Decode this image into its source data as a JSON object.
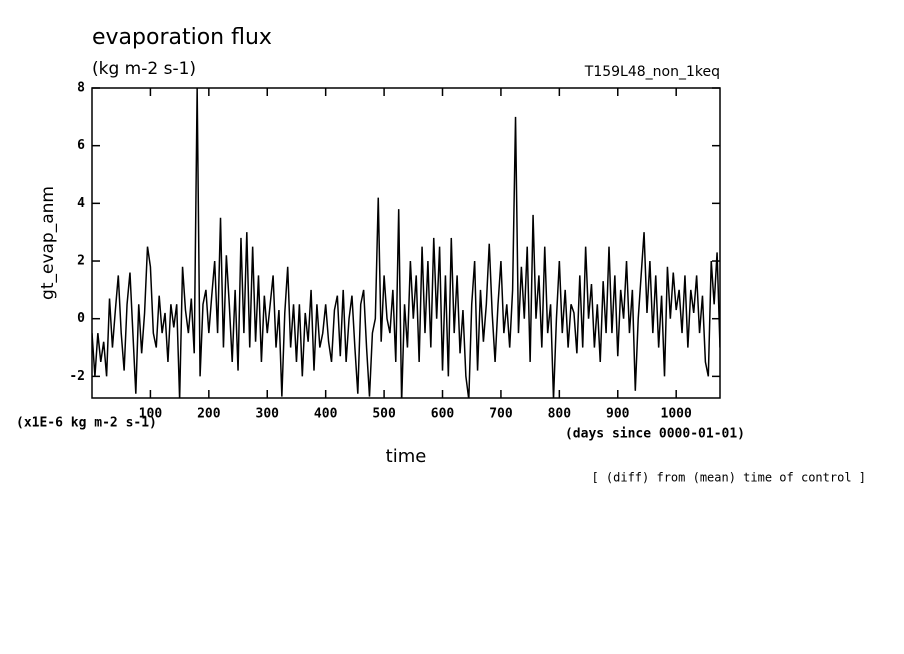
{
  "chart_data": {
    "type": "line",
    "title": "evaporation flux",
    "subtitle": "(kg m-2 s-1)",
    "run_label": "T159L48_non_1keq",
    "ylabel": "gt_evap_anm",
    "xlabel": "time",
    "x_unit": "(days since 0000-01-01)",
    "y_unit": "(x1E-6 kg m-2 s-1)",
    "note": "[ (diff) from (mean) time of control ]",
    "xlim": [
      0,
      1075
    ],
    "ylim": [
      -2.75,
      8
    ],
    "xticks": [
      100,
      200,
      300,
      400,
      500,
      600,
      700,
      800,
      900,
      1000
    ],
    "yticks": [
      -2,
      0,
      2,
      4,
      6,
      8
    ],
    "x": [
      0,
      5,
      10,
      15,
      20,
      25,
      30,
      35,
      40,
      45,
      50,
      55,
      60,
      65,
      70,
      75,
      80,
      85,
      90,
      95,
      100,
      105,
      110,
      115,
      120,
      125,
      130,
      135,
      140,
      145,
      150,
      155,
      160,
      165,
      170,
      175,
      180,
      185,
      190,
      195,
      200,
      205,
      210,
      215,
      220,
      225,
      230,
      235,
      240,
      245,
      250,
      255,
      260,
      265,
      270,
      275,
      280,
      285,
      290,
      295,
      300,
      305,
      310,
      315,
      320,
      325,
      330,
      335,
      340,
      345,
      350,
      355,
      360,
      365,
      370,
      375,
      380,
      385,
      390,
      395,
      400,
      405,
      410,
      415,
      420,
      425,
      430,
      435,
      440,
      445,
      450,
      455,
      460,
      465,
      470,
      475,
      480,
      485,
      490,
      495,
      500,
      505,
      510,
      515,
      520,
      525,
      530,
      535,
      540,
      545,
      550,
      555,
      560,
      565,
      570,
      575,
      580,
      585,
      590,
      595,
      600,
      605,
      610,
      615,
      620,
      625,
      630,
      635,
      640,
      645,
      650,
      655,
      660,
      665,
      670,
      675,
      680,
      685,
      690,
      695,
      700,
      705,
      710,
      715,
      720,
      725,
      730,
      735,
      740,
      745,
      750,
      755,
      760,
      765,
      770,
      775,
      780,
      785,
      790,
      795,
      800,
      805,
      810,
      815,
      820,
      825,
      830,
      835,
      840,
      845,
      850,
      855,
      860,
      865,
      870,
      875,
      880,
      885,
      890,
      895,
      900,
      905,
      910,
      915,
      920,
      925,
      930,
      935,
      940,
      945,
      950,
      955,
      960,
      965,
      970,
      975,
      980,
      985,
      990,
      995,
      1000,
      1005,
      1010,
      1015,
      1020,
      1025,
      1030,
      1035,
      1040,
      1045,
      1050,
      1055,
      1060,
      1065,
      1070,
      1075
    ],
    "series": [
      {
        "color": "#000000",
        "values": [
          -0.5,
          -2,
          -0.5,
          -1.5,
          -0.8,
          -2,
          0.7,
          -1,
          0.3,
          1.5,
          -0.5,
          -1.8,
          0.5,
          1.6,
          -0.5,
          -2.6,
          0.5,
          -1.2,
          0.2,
          2.5,
          1.8,
          -0.5,
          -1,
          0.8,
          -0.5,
          0.2,
          -1.5,
          0.5,
          -0.3,
          0.5,
          -2.8,
          1.8,
          0.3,
          -0.5,
          0.7,
          -1.2,
          8,
          -2,
          0.5,
          1,
          -0.5,
          0.8,
          2,
          -0.5,
          3.5,
          -1,
          2.2,
          0.5,
          -1.5,
          1,
          -1.8,
          2.8,
          -0.5,
          3,
          -1,
          2.5,
          -0.8,
          1.5,
          -1.5,
          0.8,
          -0.5,
          0.5,
          1.5,
          -1,
          0.3,
          -2.7,
          0.2,
          1.8,
          -1,
          0.5,
          -1.5,
          0.5,
          -2,
          0.2,
          -0.8,
          1,
          -1.8,
          0.5,
          -1,
          -0.5,
          0.5,
          -0.8,
          -1.5,
          0.3,
          0.8,
          -1.3,
          1,
          -1.5,
          0,
          0.8,
          -1,
          -2.6,
          0.5,
          1,
          -1,
          -2.7,
          -0.5,
          0,
          4.2,
          -0.8,
          1.5,
          0,
          -0.5,
          1,
          -1.5,
          3.8,
          -2.9,
          0.5,
          -1,
          2,
          0,
          1.5,
          -1.5,
          2.5,
          -0.5,
          2,
          -1,
          2.8,
          0,
          2.5,
          -1.8,
          1.5,
          -2,
          2.8,
          -0.5,
          1.5,
          -1.2,
          0.3,
          -2,
          -2.8,
          0.5,
          2,
          -1.8,
          1,
          -0.8,
          0.5,
          2.6,
          0.2,
          -1.5,
          0.5,
          2,
          -0.5,
          0.5,
          -1,
          1,
          7,
          -0.5,
          1.8,
          0,
          2.5,
          -1.5,
          3.6,
          0,
          1.5,
          -1,
          2.5,
          -0.5,
          0.5,
          -2.8,
          0,
          2,
          -0.5,
          1,
          -1,
          0.5,
          0.2,
          -1.2,
          1.5,
          -1,
          2.5,
          0,
          1.2,
          -1,
          0.5,
          -1.5,
          1.3,
          -0.5,
          2.5,
          -0.5,
          1.5,
          -1.3,
          1,
          0,
          2,
          -0.5,
          1,
          -2.5,
          0,
          1.5,
          3,
          0.2,
          2,
          -0.5,
          1.5,
          -1,
          0.8,
          -2,
          1.8,
          0,
          1.6,
          0.3,
          1,
          -0.5,
          1.5,
          -1,
          1,
          0.2,
          1.5,
          -0.5,
          0.8,
          -1.5,
          -2,
          2,
          0.5,
          2.3,
          -1
        ]
      }
    ]
  }
}
